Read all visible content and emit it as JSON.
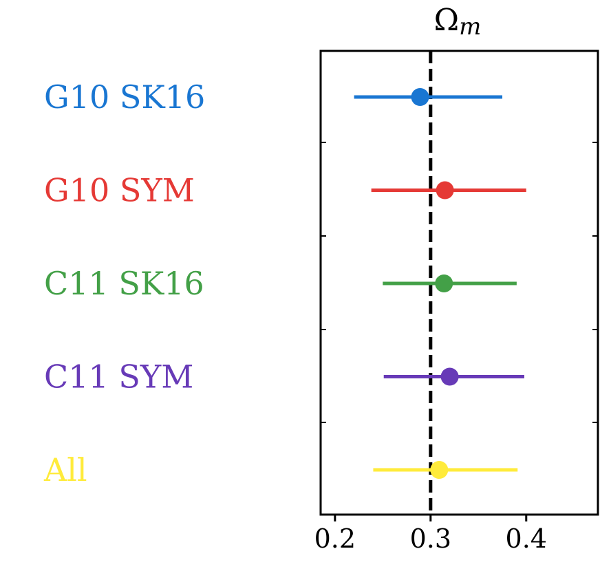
{
  "chart_data": {
    "type": "scatter",
    "title": "Ω",
    "title_subscript": "m",
    "xlim": [
      0.185,
      0.475
    ],
    "xticks": [
      {
        "value": 0.2,
        "label": "0.2"
      },
      {
        "value": 0.3,
        "label": "0.3"
      },
      {
        "value": 0.4,
        "label": "0.4"
      }
    ],
    "reference_line": {
      "x": 0.3,
      "style": "dashed",
      "color": "#000000"
    },
    "series": [
      {
        "name": "G10 SK16",
        "value": 0.289,
        "low": 0.22,
        "high": 0.375,
        "color": "#1976d2"
      },
      {
        "name": "G10 SYM",
        "value": 0.315,
        "low": 0.238,
        "high": 0.4,
        "color": "#e53935"
      },
      {
        "name": "C11 SK16",
        "value": 0.314,
        "low": 0.25,
        "high": 0.39,
        "color": "#43a047"
      },
      {
        "name": "C11 SYM",
        "value": 0.32,
        "low": 0.251,
        "high": 0.398,
        "color": "#673ab7"
      },
      {
        "name": "All",
        "value": 0.309,
        "low": 0.24,
        "high": 0.391,
        "color": "#ffeb3b"
      }
    ],
    "grid": false
  }
}
